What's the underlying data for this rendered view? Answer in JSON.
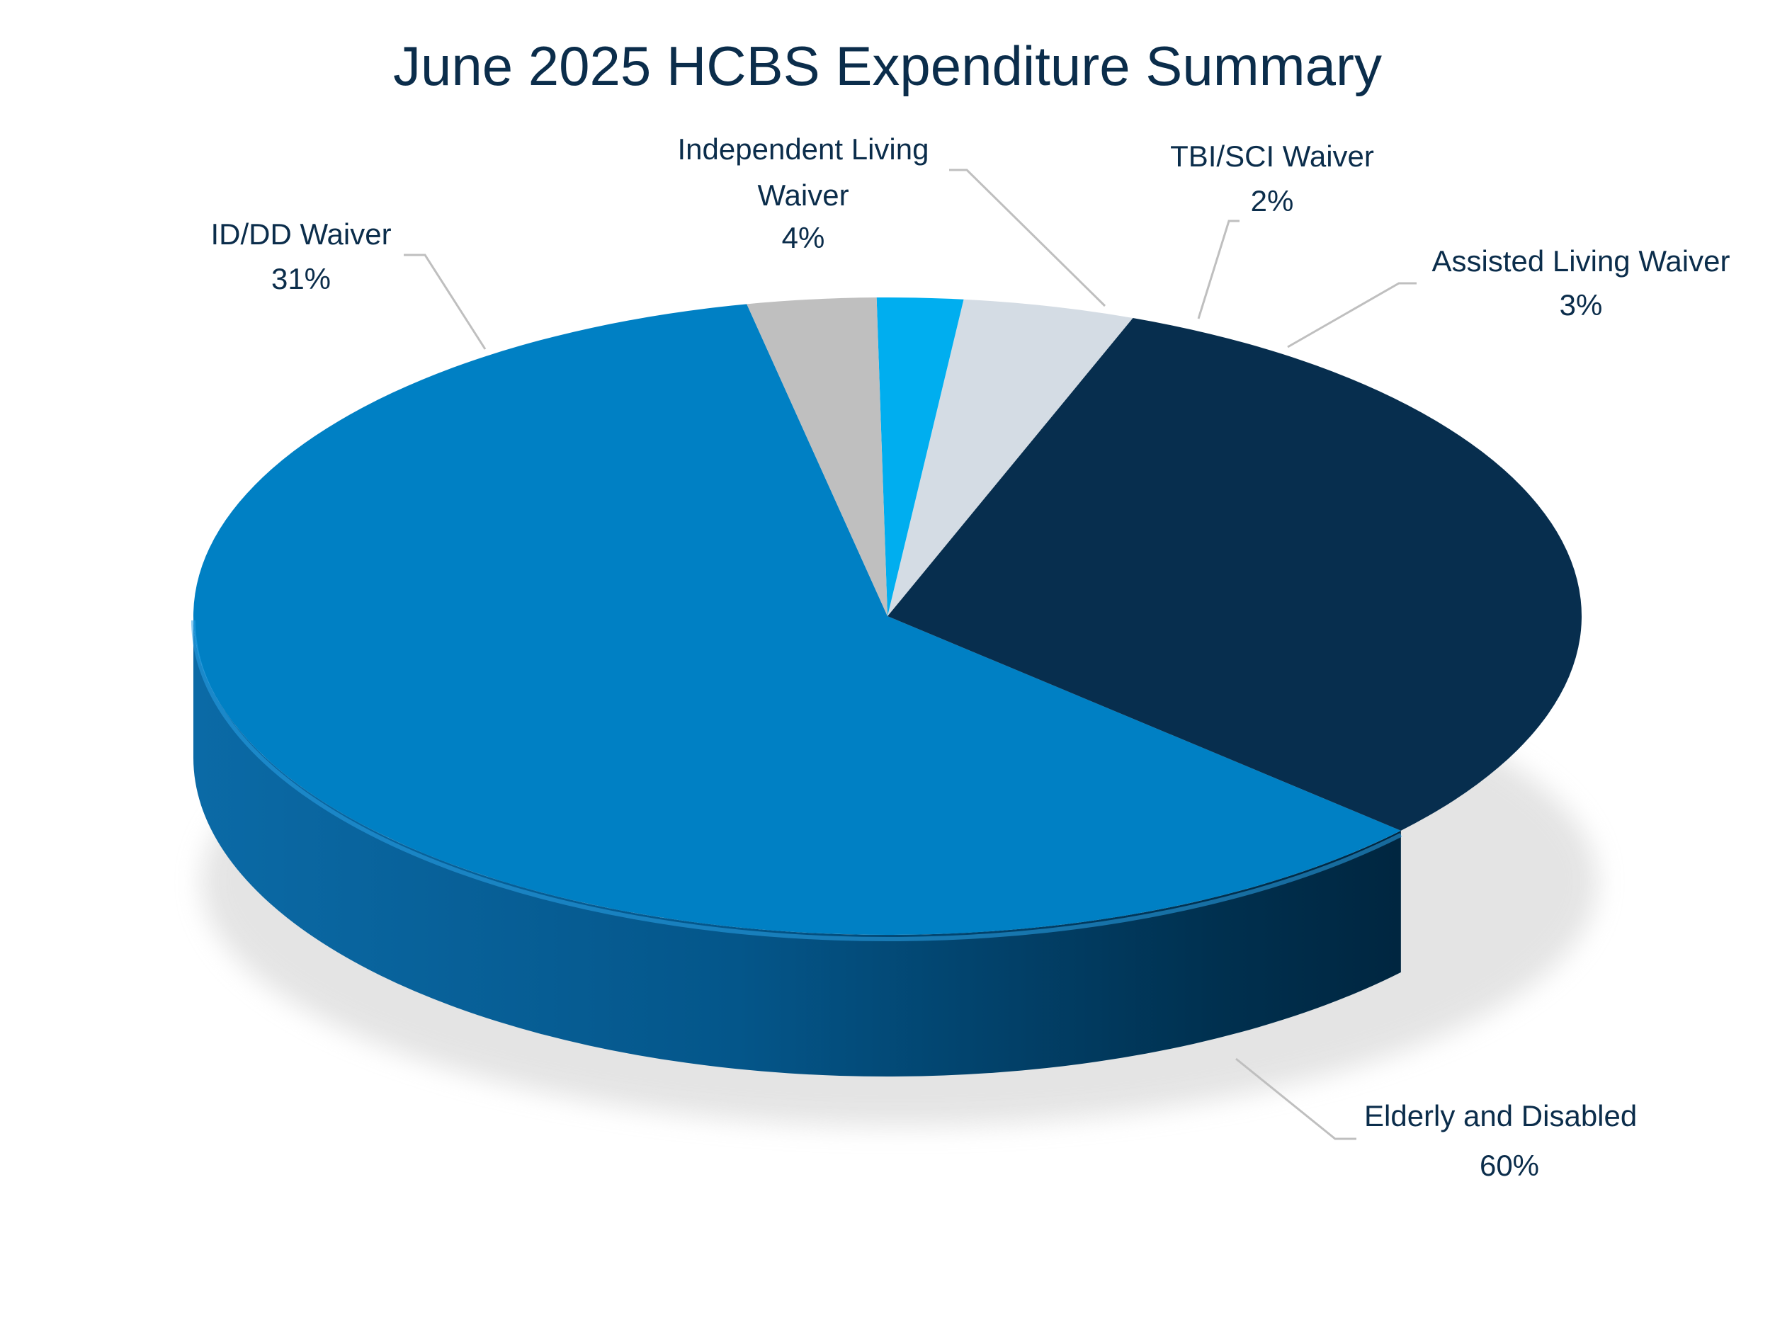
{
  "chart_data": {
    "type": "pie",
    "style": "3d",
    "title": "June 2025 HCBS Expenditure Summary",
    "unit": "%",
    "slices": [
      {
        "name": "Elderly and Disabled",
        "value": 60,
        "value_label": "60%",
        "color": "#0080c4"
      },
      {
        "name": "ID/DD Waiver",
        "value": 31,
        "value_label": "31%",
        "color": "#072e4e"
      },
      {
        "name": "Independent Living Waiver",
        "value": 4,
        "value_label": "4%",
        "color": "#d4dce4"
      },
      {
        "name": "TBI/SCI Waiver",
        "value": 2,
        "value_label": "2%",
        "color": "#00aeef"
      },
      {
        "name": "Assisted Living Waiver",
        "value": 3,
        "value_label": "3%",
        "color": "#bfbfbf"
      }
    ],
    "legend": "none",
    "data_labels": "outside with leader lines"
  }
}
